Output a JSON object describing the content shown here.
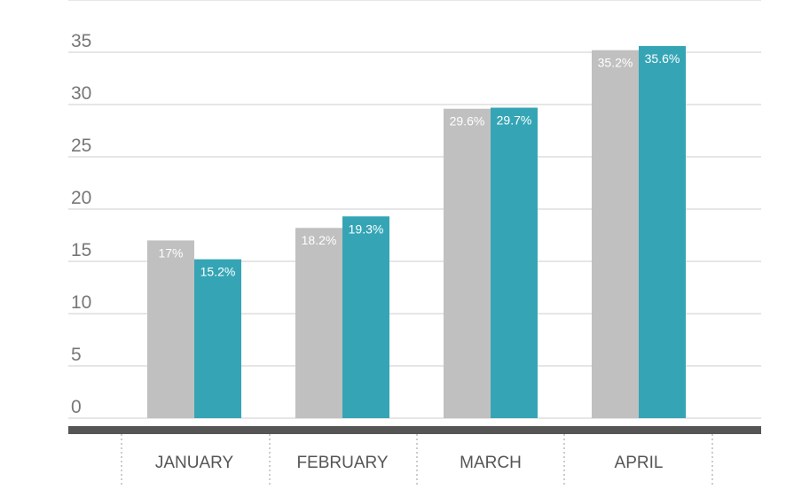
{
  "chart_data": {
    "type": "bar",
    "categories": [
      "JANUARY",
      "FEBRUARY",
      "MARCH",
      "APRIL"
    ],
    "series": [
      {
        "values": [
          17,
          18.2,
          29.6,
          35.2
        ],
        "labels": [
          "17%",
          "18.2%",
          "29.6%",
          "35.2%"
        ],
        "color": "#c0c0c0"
      },
      {
        "values": [
          15.2,
          19.3,
          29.7,
          35.6
        ],
        "labels": [
          "15.2%",
          "19.3%",
          "29.7%",
          "35.6%"
        ],
        "color": "#35a5b5"
      }
    ],
    "yticks": [
      "0",
      "5",
      "10",
      "15",
      "20",
      "25",
      "30",
      "35"
    ],
    "ylim": [
      0,
      40
    ],
    "grid": true,
    "legend": "none",
    "colors": {
      "gridline": "#cccccc",
      "baseline": "#555555",
      "separator": "#999999"
    }
  }
}
